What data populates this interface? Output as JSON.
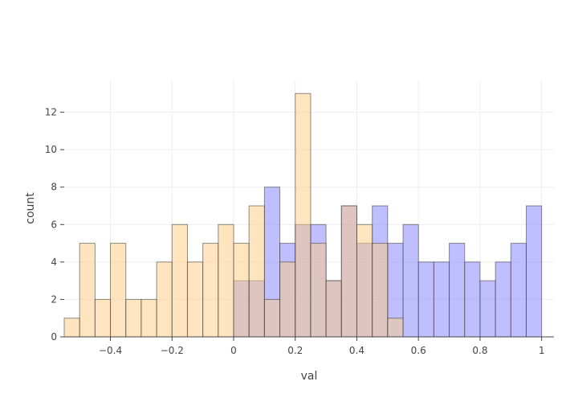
{
  "chart_data": {
    "type": "bar",
    "title": "",
    "xlabel": "val",
    "ylabel": "count",
    "xlim": [
      -0.55,
      1.04
    ],
    "ylim": [
      0,
      13.7
    ],
    "grid": true,
    "bin_width": 0.05,
    "x_ticks": [
      -0.4,
      -0.2,
      0,
      0.2,
      0.4,
      0.6,
      0.8,
      1
    ],
    "x_tick_labels": [
      "−0.4",
      "−0.2",
      "0",
      "0.2",
      "0.4",
      "0.6",
      "0.8",
      "1"
    ],
    "y_ticks": [
      0,
      2,
      4,
      6,
      8,
      10,
      12
    ],
    "y_tick_labels": [
      "0",
      "2",
      "4",
      "6",
      "8",
      "10",
      "12"
    ],
    "series": [
      {
        "color": "#7f7fff",
        "bins": [
          {
            "x0": 0.0,
            "count": 3
          },
          {
            "x0": 0.05,
            "count": 3
          },
          {
            "x0": 0.1,
            "count": 8
          },
          {
            "x0": 0.15,
            "count": 5
          },
          {
            "x0": 0.2,
            "count": 6
          },
          {
            "x0": 0.25,
            "count": 6
          },
          {
            "x0": 0.3,
            "count": 3
          },
          {
            "x0": 0.35,
            "count": 7
          },
          {
            "x0": 0.4,
            "count": 5
          },
          {
            "x0": 0.45,
            "count": 7
          },
          {
            "x0": 0.5,
            "count": 5
          },
          {
            "x0": 0.55,
            "count": 6
          },
          {
            "x0": 0.6,
            "count": 4
          },
          {
            "x0": 0.65,
            "count": 4
          },
          {
            "x0": 0.7,
            "count": 5
          },
          {
            "x0": 0.75,
            "count": 4
          },
          {
            "x0": 0.8,
            "count": 3
          },
          {
            "x0": 0.85,
            "count": 4
          },
          {
            "x0": 0.9,
            "count": 5
          },
          {
            "x0": 0.95,
            "count": 7
          }
        ]
      },
      {
        "color": "#ffcb7f",
        "bins": [
          {
            "x0": -0.55,
            "count": 1
          },
          {
            "x0": -0.5,
            "count": 5
          },
          {
            "x0": -0.45,
            "count": 2
          },
          {
            "x0": -0.4,
            "count": 5
          },
          {
            "x0": -0.35,
            "count": 2
          },
          {
            "x0": -0.3,
            "count": 2
          },
          {
            "x0": -0.25,
            "count": 4
          },
          {
            "x0": -0.2,
            "count": 6
          },
          {
            "x0": -0.15,
            "count": 4
          },
          {
            "x0": -0.1,
            "count": 5
          },
          {
            "x0": -0.05,
            "count": 6
          },
          {
            "x0": 0.0,
            "count": 5
          },
          {
            "x0": 0.05,
            "count": 7
          },
          {
            "x0": 0.1,
            "count": 2
          },
          {
            "x0": 0.15,
            "count": 4
          },
          {
            "x0": 0.2,
            "count": 13
          },
          {
            "x0": 0.25,
            "count": 5
          },
          {
            "x0": 0.3,
            "count": 3
          },
          {
            "x0": 0.35,
            "count": 7
          },
          {
            "x0": 0.4,
            "count": 6
          },
          {
            "x0": 0.45,
            "count": 5
          },
          {
            "x0": 0.5,
            "count": 1
          }
        ]
      }
    ]
  }
}
